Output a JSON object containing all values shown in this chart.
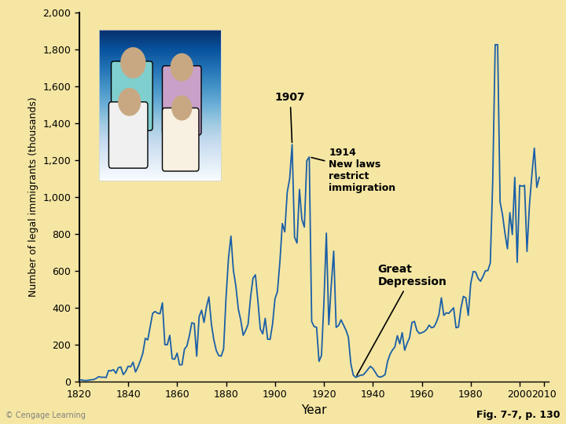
{
  "title": "",
  "xlabel": "Year",
  "ylabel": "Number of legal immigrants (thousands)",
  "background_color": "#f5e6a3",
  "line_color": "#1a5fa8",
  "fig_note": "Fig. 7-7, p. 130",
  "copyright": "© Cengage Learning",
  "annotation_1907": "1907",
  "annotation_1914": "1914\nNew laws\nrestrict\nimmigration",
  "annotation_depression": "Great\nDepression",
  "ytick_labels": [
    "0",
    "200",
    "400",
    "600",
    "800",
    "1,000",
    "1,200",
    "1,400",
    "1,600",
    "1,800",
    "2,000"
  ],
  "ytick_values": [
    0,
    200,
    400,
    600,
    800,
    1000,
    1200,
    1400,
    1600,
    1800,
    2000
  ],
  "xtick_values": [
    1820,
    1840,
    1860,
    1880,
    1900,
    1920,
    1940,
    1960,
    1980,
    2000,
    2010
  ],
  "xlim": [
    1820,
    2012
  ],
  "ylim": [
    0,
    2000
  ],
  "years": [
    1820,
    1821,
    1822,
    1823,
    1824,
    1825,
    1826,
    1827,
    1828,
    1829,
    1830,
    1831,
    1832,
    1833,
    1834,
    1835,
    1836,
    1837,
    1838,
    1839,
    1840,
    1841,
    1842,
    1843,
    1844,
    1845,
    1846,
    1847,
    1848,
    1849,
    1850,
    1851,
    1852,
    1853,
    1854,
    1855,
    1856,
    1857,
    1858,
    1859,
    1860,
    1861,
    1862,
    1863,
    1864,
    1865,
    1866,
    1867,
    1868,
    1869,
    1870,
    1871,
    1872,
    1873,
    1874,
    1875,
    1876,
    1877,
    1878,
    1879,
    1880,
    1881,
    1882,
    1883,
    1884,
    1885,
    1886,
    1887,
    1888,
    1889,
    1890,
    1891,
    1892,
    1893,
    1894,
    1895,
    1896,
    1897,
    1898,
    1899,
    1900,
    1901,
    1902,
    1903,
    1904,
    1905,
    1906,
    1907,
    1908,
    1909,
    1910,
    1911,
    1912,
    1913,
    1914,
    1915,
    1916,
    1917,
    1918,
    1919,
    1920,
    1921,
    1922,
    1923,
    1924,
    1925,
    1926,
    1927,
    1928,
    1929,
    1930,
    1931,
    1932,
    1933,
    1934,
    1935,
    1936,
    1937,
    1938,
    1939,
    1940,
    1941,
    1942,
    1943,
    1944,
    1945,
    1946,
    1947,
    1948,
    1949,
    1950,
    1951,
    1952,
    1953,
    1954,
    1955,
    1956,
    1957,
    1958,
    1959,
    1960,
    1961,
    1962,
    1963,
    1964,
    1965,
    1966,
    1967,
    1968,
    1969,
    1970,
    1971,
    1972,
    1973,
    1974,
    1975,
    1976,
    1977,
    1978,
    1979,
    1980,
    1981,
    1982,
    1983,
    1984,
    1985,
    1986,
    1987,
    1988,
    1989,
    1990,
    1991,
    1992,
    1993,
    1994,
    1995,
    1996,
    1997,
    1998,
    1999,
    2000,
    2001,
    2002,
    2003,
    2004,
    2005,
    2006,
    2007,
    2008
  ],
  "values": [
    8,
    9,
    6,
    6,
    8,
    10,
    11,
    18,
    27,
    23,
    24,
    22,
    60,
    58,
    65,
    45,
    76,
    79,
    38,
    55,
    84,
    80,
    105,
    52,
    79,
    114,
    154,
    235,
    226,
    297,
    370,
    380,
    371,
    368,
    427,
    200,
    200,
    251,
    124,
    121,
    154,
    91,
    91,
    176,
    193,
    248,
    319,
    315,
    138,
    352,
    387,
    321,
    405,
    459,
    313,
    227,
    169,
    141,
    138,
    177,
    457,
    669,
    789,
    603,
    519,
    395,
    334,
    251,
    277,
    311,
    455,
    560,
    579,
    440,
    285,
    259,
    343,
    230,
    229,
    311,
    449,
    488,
    648,
    857,
    812,
    1026,
    1100,
    1285,
    783,
    751,
    1042,
    879,
    838,
    1197,
    1218,
    326,
    298,
    295,
    110,
    141,
    430,
    805,
    309,
    523,
    707,
    294,
    304,
    335,
    307,
    279,
    241,
    97,
    35,
    23,
    29,
    35,
    36,
    50,
    67,
    83,
    71,
    51,
    29,
    24,
    29,
    38,
    109,
    147,
    171,
    188,
    249,
    205,
    265,
    170,
    208,
    238,
    321,
    326,
    277,
    261,
    265,
    271,
    283,
    306,
    292,
    297,
    323,
    362,
    454,
    359,
    373,
    370,
    385,
    400,
    292,
    296,
    398,
    462,
    454,
    359,
    531,
    597,
    594,
    560,
    544,
    570,
    601,
    602,
    643,
    1091,
    1827,
    1827,
    974,
    904,
    804,
    720,
    916,
    797,
    1107,
    647,
    1064,
    1059,
    1064,
    706,
    957,
    1122,
    1266,
    1053,
    1107
  ]
}
